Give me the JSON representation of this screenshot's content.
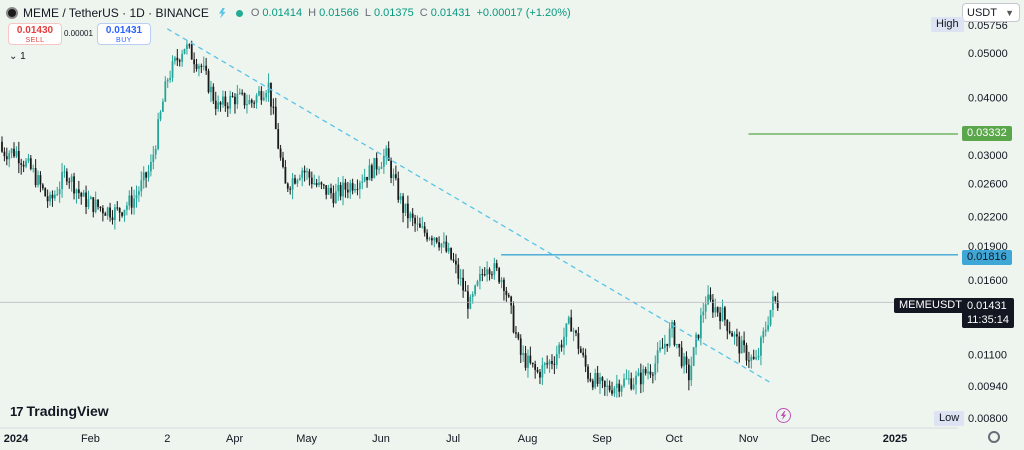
{
  "header": {
    "symbol_title": "MEME / TetherUS · 1D · BINANCE",
    "open_label": "O",
    "open_value": "0.01414",
    "high_label": "H",
    "high_value": "0.01566",
    "low_label": "L",
    "low_value": "0.01375",
    "close_label": "C",
    "close_value": "0.01431",
    "change_value": "+0.00017 (+1.20%)"
  },
  "trade": {
    "sell_price": "0.01430",
    "sell_label": "SELL",
    "spread": "0.00001",
    "buy_price": "0.01431",
    "buy_label": "BUY"
  },
  "indicator_toggle": "1",
  "brand": "TradingView",
  "currency_selector": "USDT",
  "colors": {
    "up": "#26a69a",
    "down": "#1a1a1a",
    "trendline": "#57c5e8",
    "green_level": "#5aa64a",
    "blue_level": "#3fa7d6",
    "price_line": "#b2b5be"
  },
  "chart_data": {
    "type": "candlestick",
    "x_axis_labels": [
      "2024",
      "Feb",
      "2",
      "Apr",
      "May",
      "Jun",
      "Jul",
      "Aug",
      "Sep",
      "Oct",
      "Nov",
      "Dec",
      "2025"
    ],
    "y_axis_labels": [
      "0.05756",
      "0.05000",
      "0.04000",
      "0.03332",
      "0.03000",
      "0.02600",
      "0.02200",
      "0.01900",
      "0.01816",
      "0.01600",
      "0.01431",
      "0.01100",
      "0.00940",
      "0.00800"
    ],
    "ylim": [
      0.0075,
      0.059
    ],
    "y_scale": "log",
    "high_tag": {
      "label": "High",
      "value": "0.05756"
    },
    "low_tag": {
      "label": "Low",
      "value": "0.00800"
    },
    "levels": [
      {
        "value": "0.03332",
        "color": "green"
      },
      {
        "value": "0.01816",
        "color": "blue"
      }
    ],
    "last_price": {
      "symbol": "MEMEUSDT",
      "value": "0.01431",
      "countdown": "11:35:14"
    },
    "trendline": {
      "from": {
        "date": "2024-03-04",
        "price": 0.0565
      },
      "to": {
        "date": "2024-11-11",
        "price": 0.0095
      }
    },
    "closes": [
      {
        "date": "2024-01-01",
        "close": 0.0305
      },
      {
        "date": "2024-01-08",
        "close": 0.0275
      },
      {
        "date": "2024-01-15",
        "close": 0.0235
      },
      {
        "date": "2024-01-22",
        "close": 0.0275
      },
      {
        "date": "2024-01-29",
        "close": 0.024
      },
      {
        "date": "2024-02-05",
        "close": 0.023
      },
      {
        "date": "2024-02-12",
        "close": 0.0225
      },
      {
        "date": "2024-02-19",
        "close": 0.024
      },
      {
        "date": "2024-02-26",
        "close": 0.028
      },
      {
        "date": "2024-03-04",
        "close": 0.044
      },
      {
        "date": "2024-03-11",
        "close": 0.052
      },
      {
        "date": "2024-03-18",
        "close": 0.047
      },
      {
        "date": "2024-03-25",
        "close": 0.038
      },
      {
        "date": "2024-04-01",
        "close": 0.04
      },
      {
        "date": "2024-04-08",
        "close": 0.039
      },
      {
        "date": "2024-04-15",
        "close": 0.043
      },
      {
        "date": "2024-04-22",
        "close": 0.0255
      },
      {
        "date": "2024-04-29",
        "close": 0.028
      },
      {
        "date": "2024-05-06",
        "close": 0.0255
      },
      {
        "date": "2024-05-13",
        "close": 0.0245
      },
      {
        "date": "2024-05-20",
        "close": 0.026
      },
      {
        "date": "2024-05-27",
        "close": 0.0275
      },
      {
        "date": "2024-06-03",
        "close": 0.03
      },
      {
        "date": "2024-06-10",
        "close": 0.023
      },
      {
        "date": "2024-06-17",
        "close": 0.0205
      },
      {
        "date": "2024-06-24",
        "close": 0.02
      },
      {
        "date": "2024-07-01",
        "close": 0.0175
      },
      {
        "date": "2024-07-08",
        "close": 0.014
      },
      {
        "date": "2024-07-15",
        "close": 0.0175
      },
      {
        "date": "2024-07-22",
        "close": 0.016
      },
      {
        "date": "2024-07-29",
        "close": 0.011
      },
      {
        "date": "2024-08-05",
        "close": 0.01
      },
      {
        "date": "2024-08-12",
        "close": 0.0108
      },
      {
        "date": "2024-08-19",
        "close": 0.013
      },
      {
        "date": "2024-08-26",
        "close": 0.01
      },
      {
        "date": "2024-09-02",
        "close": 0.0092
      },
      {
        "date": "2024-09-09",
        "close": 0.0096
      },
      {
        "date": "2024-09-16",
        "close": 0.0097
      },
      {
        "date": "2024-09-23",
        "close": 0.0105
      },
      {
        "date": "2024-09-30",
        "close": 0.0125
      },
      {
        "date": "2024-10-07",
        "close": 0.0098
      },
      {
        "date": "2024-10-14",
        "close": 0.0145
      },
      {
        "date": "2024-10-21",
        "close": 0.0135
      },
      {
        "date": "2024-10-28",
        "close": 0.0115
      },
      {
        "date": "2024-11-04",
        "close": 0.0105
      },
      {
        "date": "2024-11-11",
        "close": 0.0143
      }
    ]
  }
}
